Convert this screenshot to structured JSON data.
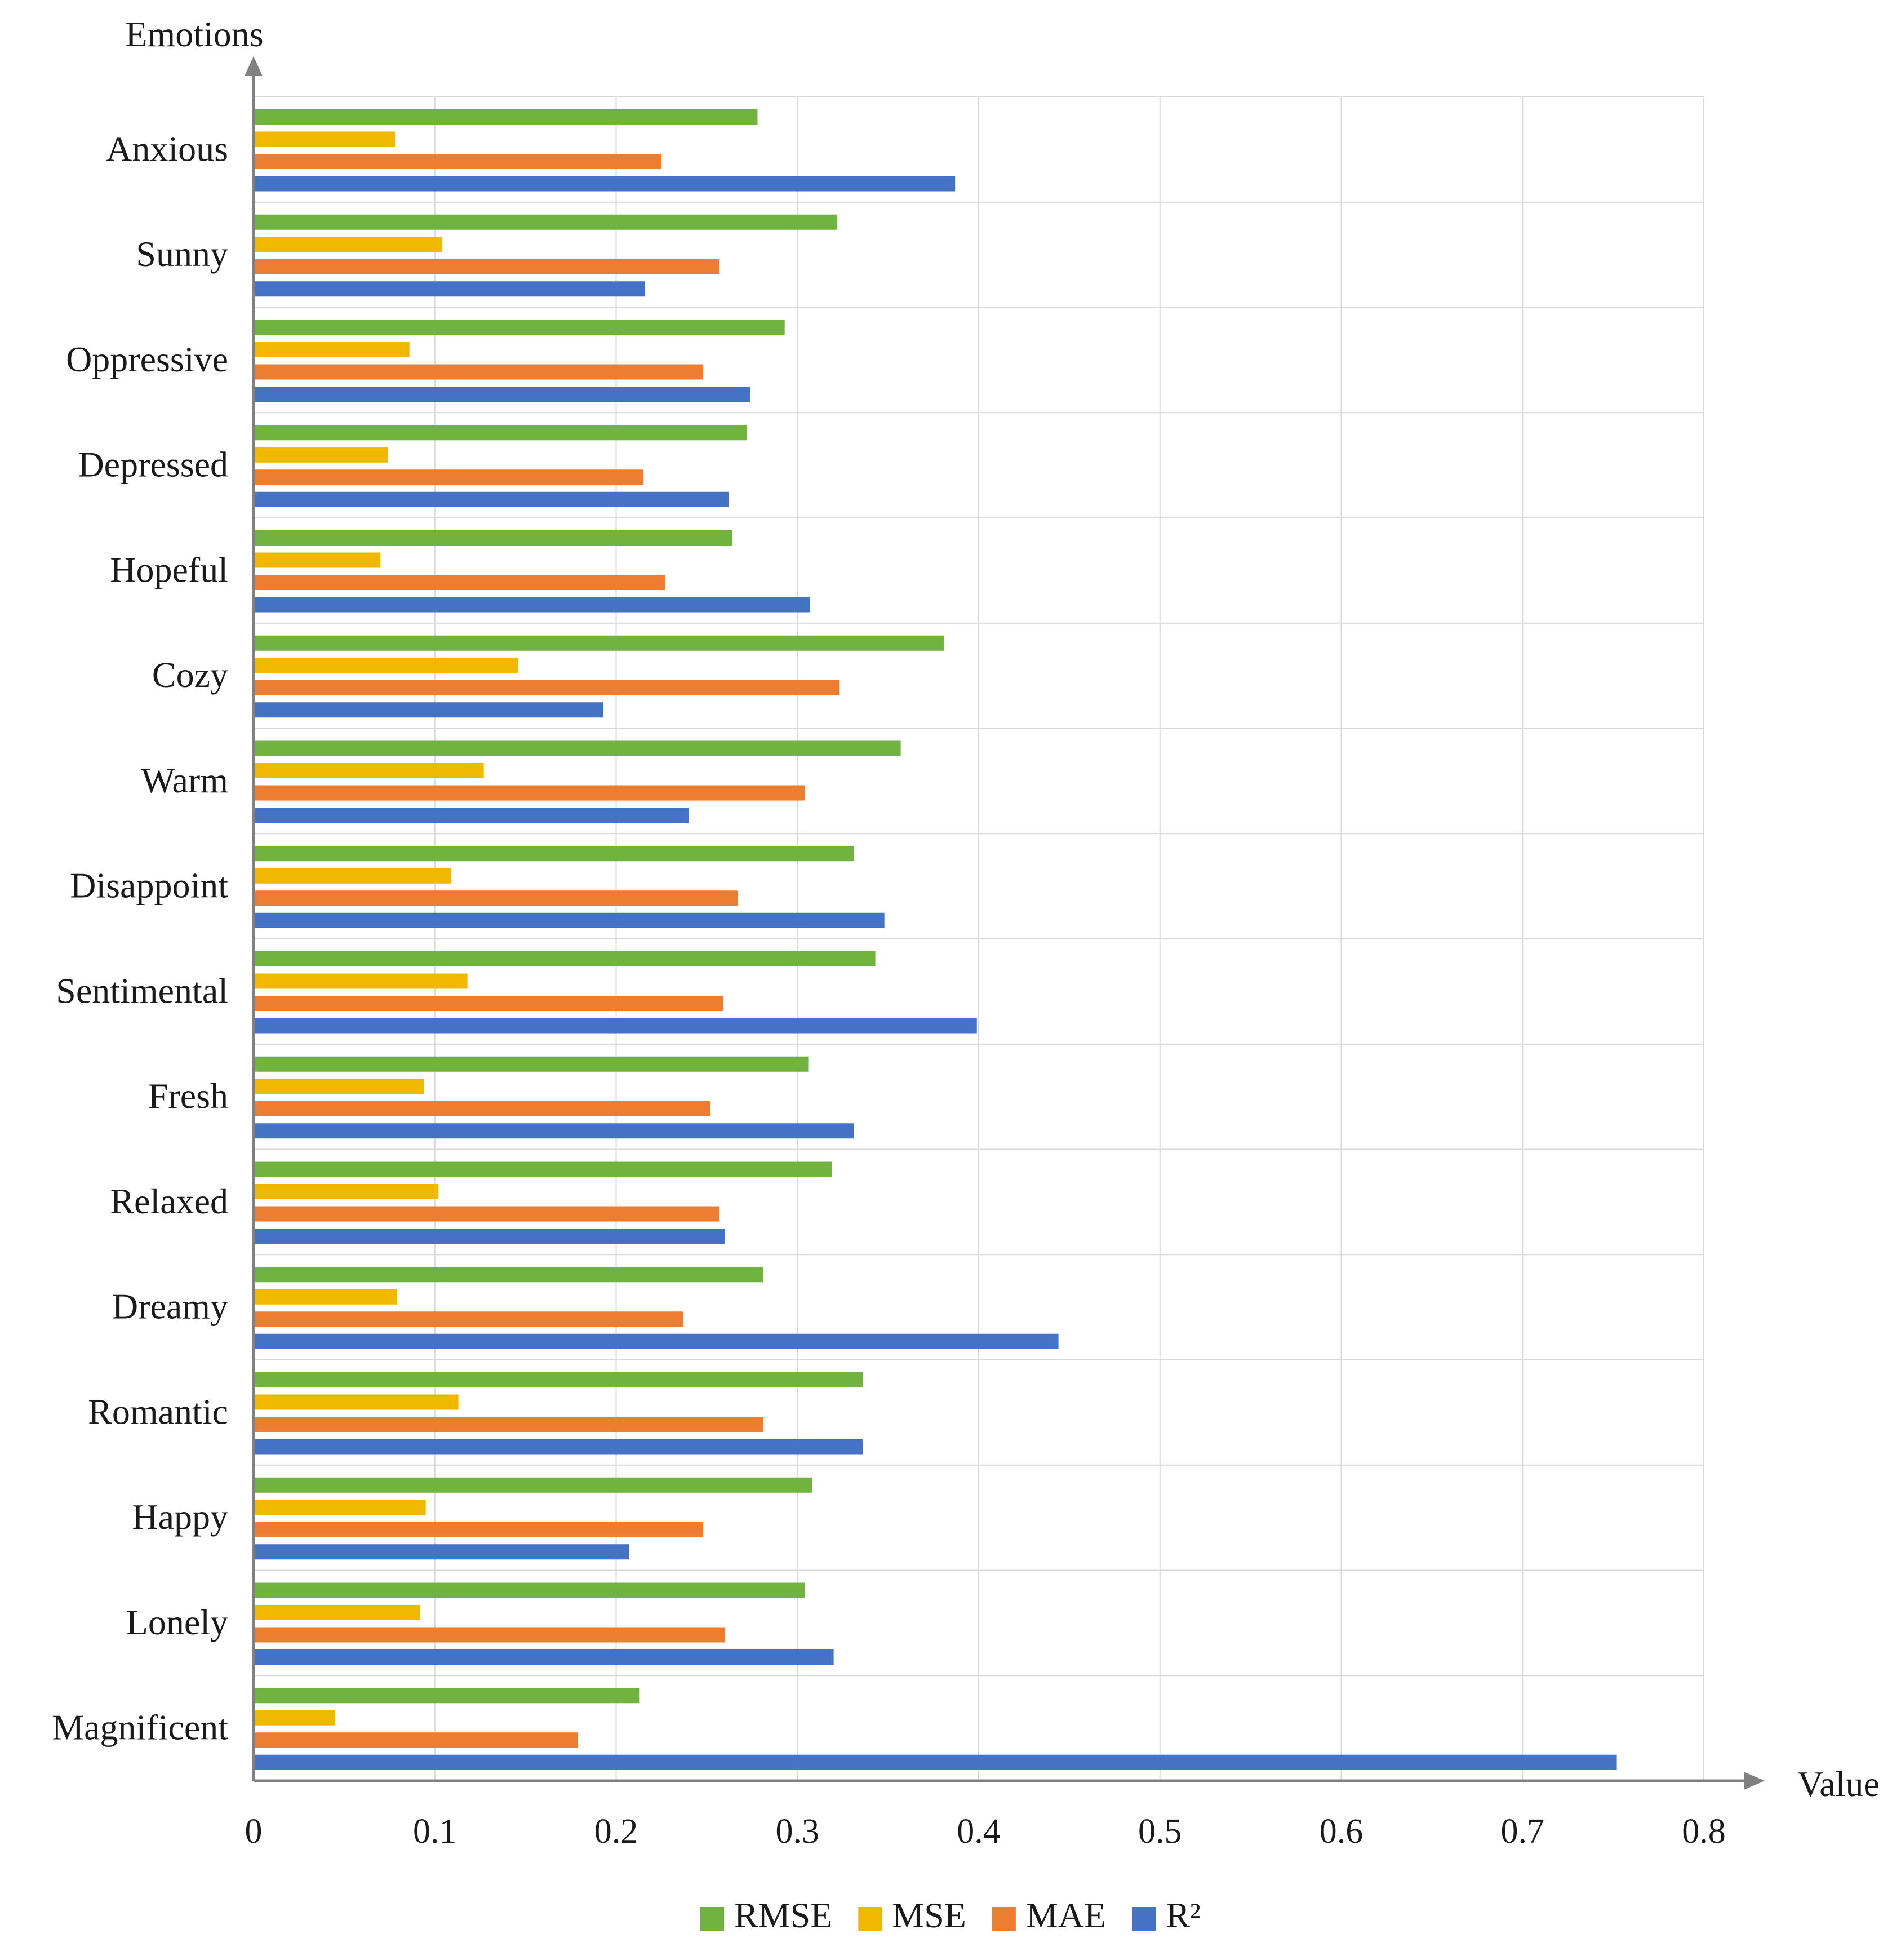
{
  "chart_data": {
    "type": "bar",
    "orientation": "horizontal",
    "title": "",
    "xlabel": "Value",
    "ylabel": "Emotions",
    "xlim": [
      0,
      0.8
    ],
    "xticks": [
      "0",
      "0.1",
      "0.2",
      "0.3",
      "0.4",
      "0.5",
      "0.6",
      "0.7",
      "0.8"
    ],
    "grid": true,
    "legend_position": "bottom",
    "categories": [
      "Anxious",
      "Sunny",
      "Oppressive",
      "Depressed",
      "Hopeful",
      "Cozy",
      "Warm",
      "Disappoint",
      "Sentimental",
      "Fresh",
      "Relaxed",
      "Dreamy",
      "Romantic",
      "Happy",
      "Lonely",
      "Magnificent"
    ],
    "series": [
      {
        "name": "RMSE",
        "color": "#70b33f",
        "values": [
          0.278,
          0.322,
          0.293,
          0.272,
          0.264,
          0.381,
          0.357,
          0.331,
          0.343,
          0.306,
          0.319,
          0.281,
          0.336,
          0.308,
          0.304,
          0.213
        ]
      },
      {
        "name": "MSE",
        "color": "#f0b800",
        "values": [
          0.078,
          0.104,
          0.086,
          0.074,
          0.07,
          0.146,
          0.127,
          0.109,
          0.118,
          0.094,
          0.102,
          0.079,
          0.113,
          0.095,
          0.092,
          0.045
        ]
      },
      {
        "name": "MAE",
        "color": "#ed7d31",
        "values": [
          0.225,
          0.257,
          0.248,
          0.215,
          0.227,
          0.323,
          0.304,
          0.267,
          0.259,
          0.252,
          0.257,
          0.237,
          0.281,
          0.248,
          0.26,
          0.179
        ]
      },
      {
        "name": "R²",
        "color": "#4472c4",
        "values": [
          0.387,
          0.216,
          0.274,
          0.262,
          0.307,
          0.193,
          0.24,
          0.348,
          0.399,
          0.331,
          0.26,
          0.444,
          0.336,
          0.207,
          0.32,
          0.752
        ]
      }
    ]
  }
}
